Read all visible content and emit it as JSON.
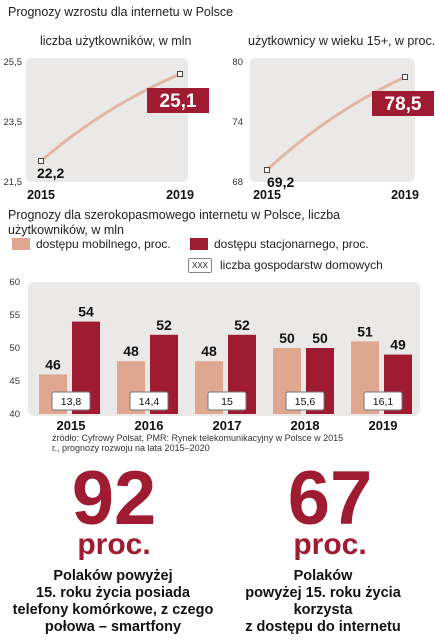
{
  "header": {
    "title": "Prognozy wzrostu dla internetu w Polsce"
  },
  "chart_data": [
    {
      "type": "line",
      "subtitle": "liczba użytkowników, w mln",
      "x": [
        "2015",
        "2019"
      ],
      "values": [
        22.2,
        25.1
      ],
      "value_labels": [
        "22,2",
        "25,1"
      ],
      "y_ticks": [
        "25,5",
        "23,5",
        "21,5"
      ],
      "ylim": [
        21.5,
        25.5
      ],
      "colors": {
        "line": "#e4b7a3",
        "highlight": "#9e1b32"
      }
    },
    {
      "type": "line",
      "subtitle": "użytkownicy w wieku 15+, w proc.",
      "x": [
        "2015",
        "2019"
      ],
      "values": [
        69.2,
        78.5
      ],
      "value_labels": [
        "69,2",
        "78,5"
      ],
      "y_ticks": [
        "80",
        "74",
        "68"
      ],
      "ylim": [
        68,
        80
      ],
      "colors": {
        "line": "#e4b7a3",
        "highlight": "#9e1b32"
      }
    },
    {
      "type": "bar",
      "title": "Prognozy dla szerokopasmowego internetu w Polsce, liczba użytkowników, w mln",
      "categories": [
        "2015",
        "2016",
        "2017",
        "2018",
        "2019"
      ],
      "series": [
        {
          "name": "dostępu mobilnego, proc.",
          "values": [
            46,
            48,
            48,
            50,
            51
          ],
          "color": "#dfa78f"
        },
        {
          "name": "dostępu stacjonarnego, proc.",
          "values": [
            54,
            52,
            52,
            50,
            49
          ],
          "color": "#9e1b32"
        }
      ],
      "households": {
        "name": "liczba gospodarstw domowych",
        "legend_box": "XXX",
        "values": [
          "13,8",
          "14,4",
          "15",
          "15,6",
          "16,1"
        ]
      },
      "y_ticks": [
        "60",
        "55",
        "50",
        "45",
        "40"
      ],
      "ylim": [
        40,
        60
      ],
      "source": "źródło: Cyfrowy Polsat, PMR: Rynek telekomunikacyjny w Polsce w 2015 r., prognozy rozwoju na lata 2015–2020"
    }
  ],
  "stats": [
    {
      "number": "92",
      "unit": "proc.",
      "text": [
        "Polaków powyżej",
        "15. roku życia posiada",
        "telefony komórkowe, z czego",
        "połowa – smartfony"
      ]
    },
    {
      "number": "67",
      "unit": "proc.",
      "text": [
        "Polaków",
        "powyżej 15. roku życia",
        "korzysta",
        "z dostępu do internetu"
      ]
    }
  ]
}
